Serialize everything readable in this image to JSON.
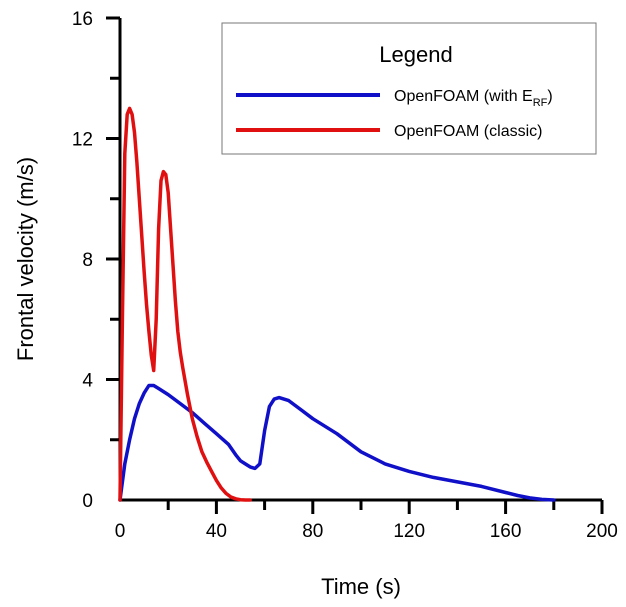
{
  "chart_data": {
    "type": "line",
    "xlabel": "Time (s)",
    "ylabel": "Frontal velocity (m/s)",
    "xlim": [
      0,
      200
    ],
    "ylim": [
      0,
      16
    ],
    "x_ticks": [
      "0",
      "40",
      "80",
      "120",
      "160",
      "200"
    ],
    "y_ticks": [
      "0",
      "4",
      "8",
      "12",
      "16"
    ],
    "grid": false,
    "legend": {
      "title": "Legend",
      "placement": "top-right",
      "entries": [
        {
          "label_main": "OpenFOAM (with E",
          "label_sub": "RF",
          "label_end": ")"
        },
        {
          "label_main": "OpenFOAM (classic)"
        }
      ]
    },
    "series": [
      {
        "name": "OpenFOAM (with E_RF)",
        "color": "#1010c8",
        "x": [
          0,
          2,
          4,
          6,
          8,
          10,
          12,
          14,
          16,
          20,
          25,
          30,
          35,
          40,
          45,
          48,
          50,
          52,
          54,
          56,
          58,
          60,
          62,
          64,
          66,
          70,
          75,
          80,
          90,
          100,
          110,
          120,
          130,
          140,
          150,
          160,
          165,
          170,
          175,
          180
        ],
        "y": [
          0,
          1.2,
          2.0,
          2.7,
          3.2,
          3.55,
          3.8,
          3.8,
          3.7,
          3.5,
          3.2,
          2.9,
          2.55,
          2.2,
          1.85,
          1.5,
          1.3,
          1.2,
          1.1,
          1.05,
          1.2,
          2.3,
          3.1,
          3.35,
          3.4,
          3.3,
          3.0,
          2.7,
          2.2,
          1.6,
          1.2,
          0.95,
          0.75,
          0.6,
          0.45,
          0.25,
          0.15,
          0.07,
          0.02,
          0
        ]
      },
      {
        "name": "OpenFOAM (classic)",
        "color": "#e01010",
        "x": [
          0,
          1,
          2,
          3,
          4,
          5,
          6,
          7,
          8,
          9,
          10,
          11,
          12,
          13,
          14,
          15,
          16,
          17,
          18,
          19,
          20,
          21,
          22,
          23,
          24,
          25,
          26,
          28,
          30,
          32,
          34,
          36,
          38,
          40,
          42,
          44,
          46,
          48,
          50,
          52,
          54
        ],
        "y": [
          0,
          6.0,
          11.5,
          12.8,
          13.0,
          12.8,
          12.2,
          11.2,
          10.0,
          8.8,
          7.6,
          6.5,
          5.6,
          4.8,
          4.3,
          6.0,
          9.0,
          10.6,
          10.9,
          10.8,
          10.2,
          9.0,
          7.8,
          6.6,
          5.6,
          4.9,
          4.4,
          3.5,
          2.7,
          2.1,
          1.6,
          1.25,
          0.95,
          0.65,
          0.4,
          0.22,
          0.1,
          0.04,
          0.01,
          0,
          0
        ]
      }
    ]
  }
}
